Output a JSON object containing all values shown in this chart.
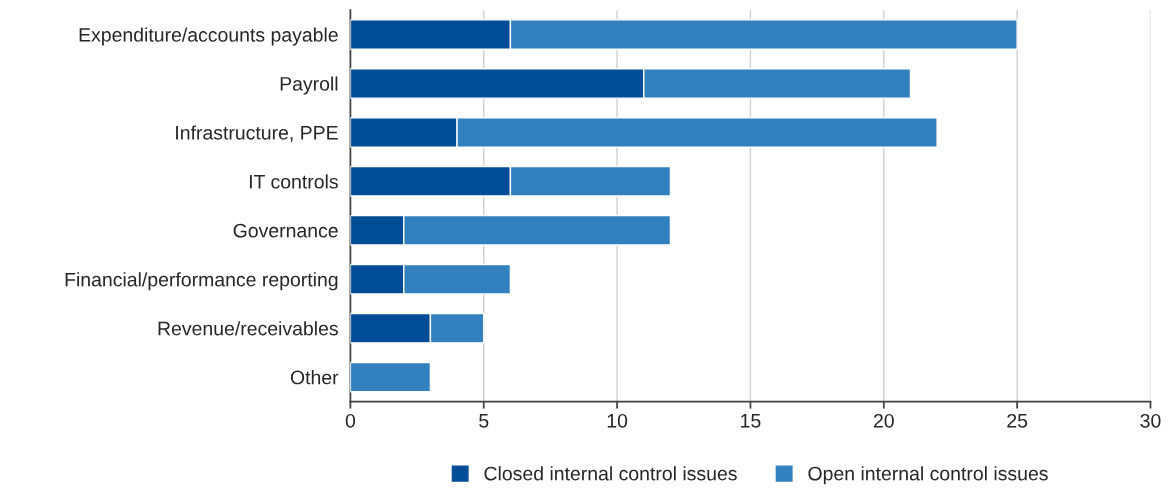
{
  "chart_data": {
    "type": "bar",
    "orientation": "horizontal",
    "stacked": true,
    "categories": [
      "Expenditure/accounts payable",
      "Payroll",
      "Infrastructure, PPE",
      "IT controls",
      "Governance",
      "Financial/performance reporting",
      "Revenue/receivables",
      "Other"
    ],
    "series": [
      {
        "name": "Closed internal control issues",
        "color": "#004c97",
        "values": [
          6,
          11,
          4,
          6,
          2,
          2,
          3,
          0
        ]
      },
      {
        "name": "Open internal control issues",
        "color": "#3380bf",
        "values": [
          19,
          10,
          18,
          6,
          10,
          4,
          2,
          3
        ]
      }
    ],
    "xlim": [
      0,
      30
    ],
    "xticks": [
      0,
      5,
      10,
      15,
      20,
      25,
      30
    ],
    "grid": "x",
    "legend": "bottom"
  }
}
